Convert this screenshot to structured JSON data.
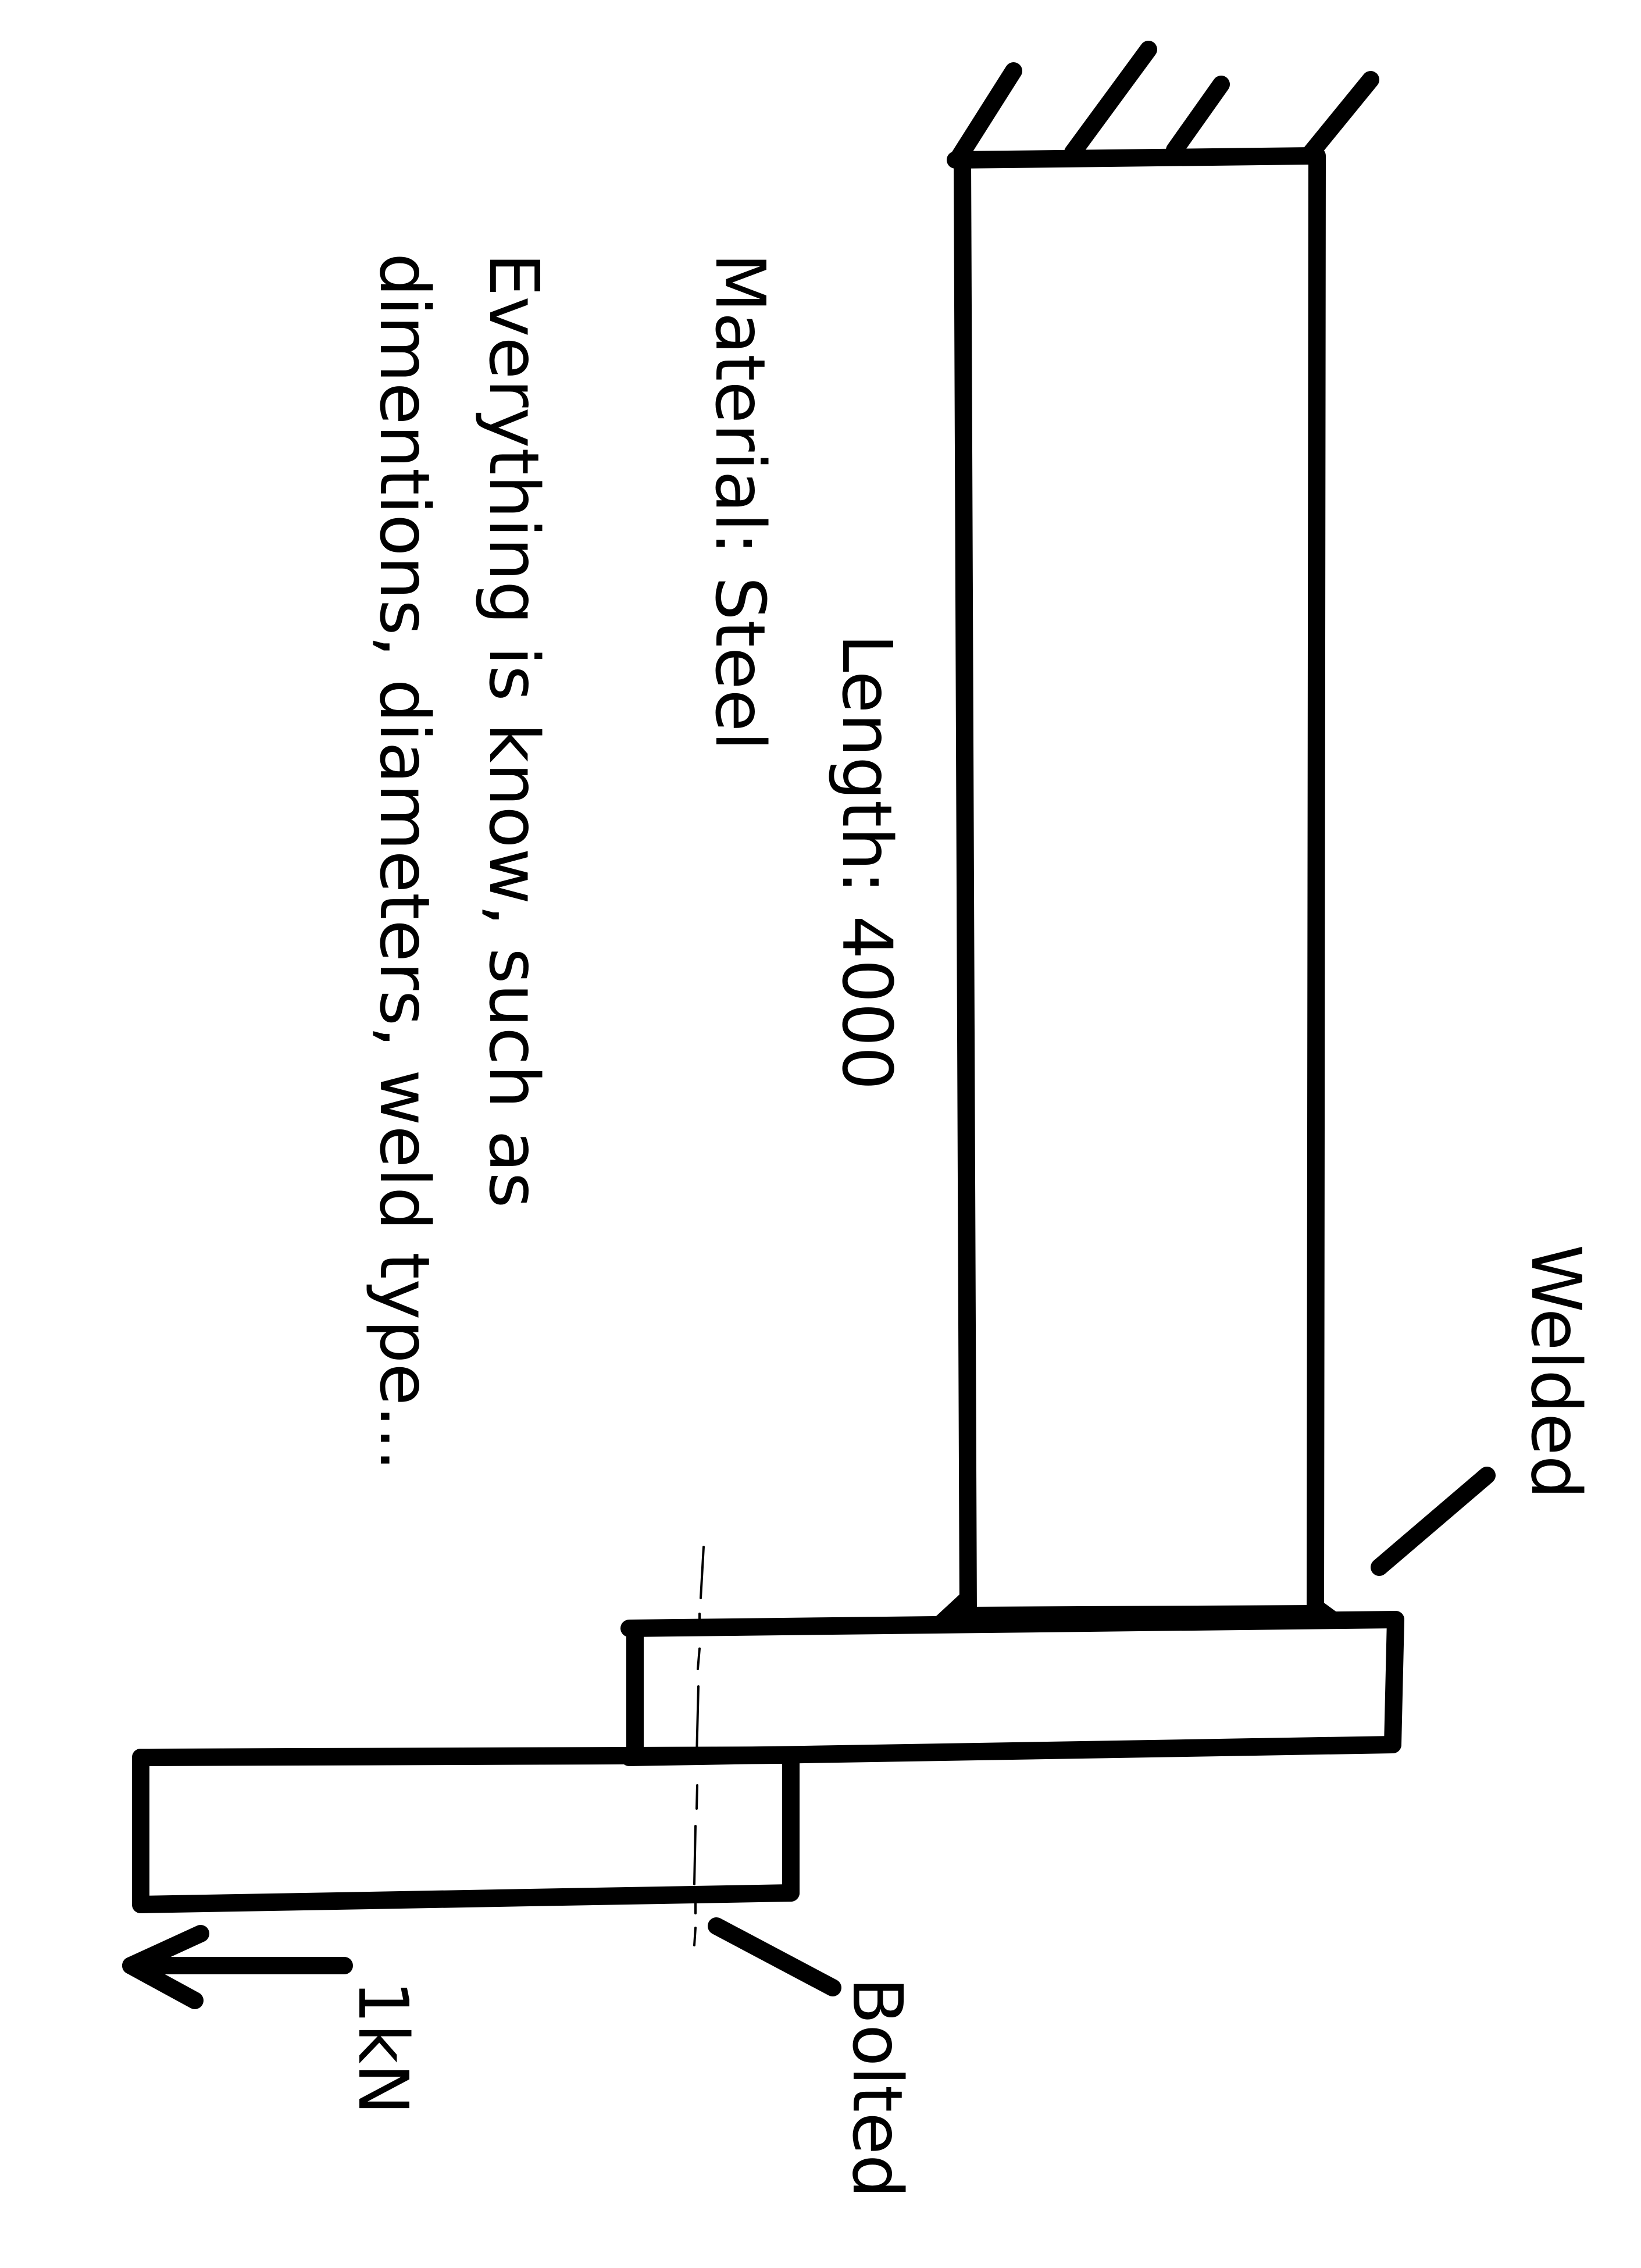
{
  "labels": {
    "length": "Length: 4000",
    "material": "Material: Steel",
    "note_line1": "Everything is know, such as",
    "note_line2": "dimentions, diameters, weld type...",
    "welded": "Welded",
    "bolted": "Bolted",
    "force": "1kN"
  },
  "colors": {
    "ink": "#000000",
    "background": "#ffffff"
  },
  "icons": {
    "fixed_support": "ground-hatch-icon",
    "load_arrow": "arrow-left-icon"
  }
}
